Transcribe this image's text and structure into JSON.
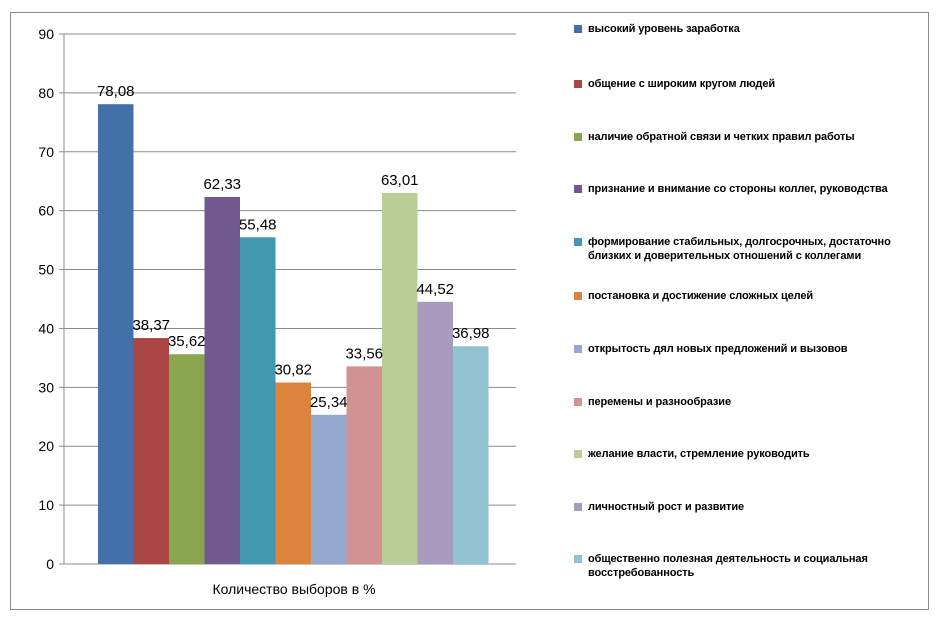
{
  "chart_data": {
    "type": "bar",
    "xlabel": "Количество выборов в %",
    "ylim": [
      0,
      90
    ],
    "yticks": [
      0,
      10,
      20,
      30,
      40,
      50,
      60,
      70,
      80,
      90
    ],
    "grid": true,
    "legend_position": "right",
    "series": [
      {
        "name": "высокий уровень заработка",
        "value": 78.08,
        "label": "78,08",
        "color": "#4370a8"
      },
      {
        "name": "общение с широким кругом людей",
        "value": 38.37,
        "label": "38,37",
        "color": "#aa4643"
      },
      {
        "name": "наличие обратной связи и четких правил работы",
        "value": 35.62,
        "label": "35,62",
        "color": "#89a54e"
      },
      {
        "name": "признание и внимание со стороны коллег, руководства",
        "value": 62.33,
        "label": "62,33",
        "color": "#71588f"
      },
      {
        "name": "формирование стабильных, долгосрочных, достаточно близких и доверительных отношений с коллегами",
        "value": 55.48,
        "label": "55,48",
        "color": "#4198af"
      },
      {
        "name": "постановка и достижение сложных целей",
        "value": 30.82,
        "label": "30,82",
        "color": "#db843d"
      },
      {
        "name": "открытость дял новых предложений и вызовов",
        "value": 25.34,
        "label": "25,34",
        "color": "#93a9cf"
      },
      {
        "name": "перемены и разнообразие",
        "value": 33.56,
        "label": "33,56",
        "color": "#d19392"
      },
      {
        "name": "желание власти, стремление руководить",
        "value": 63.01,
        "label": "63,01",
        "color": "#b9cd96"
      },
      {
        "name": "личностный рост и развитие",
        "value": 44.52,
        "label": "44,52",
        "color": "#a99bbd"
      },
      {
        "name": "общественно полезная деятельность и социальная восстребованность",
        "value": 36.98,
        "label": "36,98",
        "color": "#92c3d1"
      }
    ]
  }
}
